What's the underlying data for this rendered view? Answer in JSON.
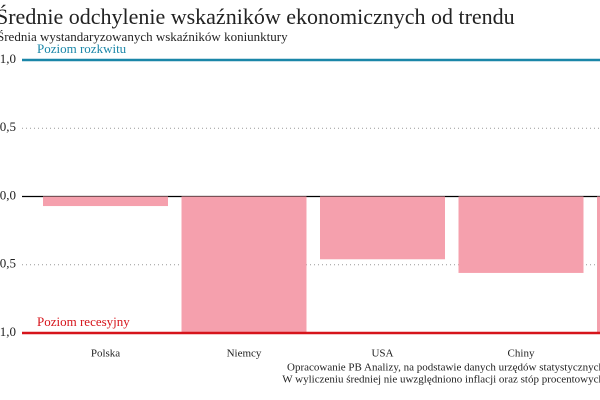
{
  "chart_data": {
    "type": "bar",
    "title": "Średnie odchylenie wskaźników ekonomicznych od trendu",
    "subtitle": "Średnia wystandaryzowanych wskaźników koniunktury",
    "categories": [
      "Polska",
      "Niemcy",
      "USA",
      "Chiny",
      null
    ],
    "values": [
      -0.07,
      -1.0,
      -0.46,
      -0.56,
      -1.0
    ],
    "color": "#f5a0ad",
    "ylim": [
      -1.0,
      1.0
    ],
    "yticks": [
      {
        "value": -1.0,
        "label": "-1,0"
      },
      {
        "value": -0.5,
        "label": "-0,5"
      },
      {
        "value": 0,
        "label": "0,0"
      },
      {
        "value": 0.5,
        "label": "0,5"
      },
      {
        "value": 1.0,
        "label": "1,0"
      }
    ],
    "grid": true,
    "reference_lines": [
      {
        "value": 1.0,
        "label": "Poziom rozkwitu",
        "color": "#1a86a8"
      },
      {
        "value": -1.0,
        "label": "Poziom recesyjny",
        "color": "#d6141b"
      }
    ],
    "notes": [
      "Opracowanie PB Analizy, na podstawie danych urzędów statystycznych",
      "W wyliczeniu średniej nie uwzględniono inflacji oraz stóp procentowych"
    ]
  }
}
